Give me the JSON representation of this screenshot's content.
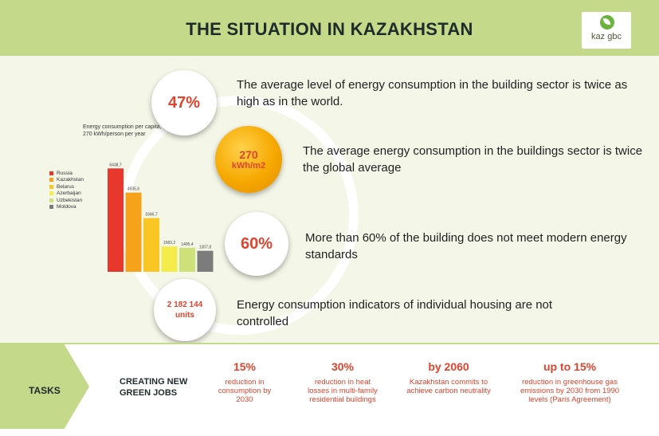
{
  "header": {
    "title": "THE SITUATION IN KAZAKHSTAN",
    "logo_text": "kaz gbc"
  },
  "stats": [
    {
      "value": "47%",
      "text": "The average level of energy consumption in the building sector is twice as high as in the world."
    },
    {
      "value": "270",
      "unit": "kWh/m2",
      "text": "The average energy consumption in the buildings sector is twice the global average"
    },
    {
      "value": "60%",
      "text": "More than 60% of the building does not meet modern energy standards"
    },
    {
      "value": "2 182 144",
      "unit": "units",
      "text": "Energy consumption indicators of individual housing are not controlled"
    }
  ],
  "chart_data": {
    "type": "bar",
    "title": "Energy consumption per capita, 270 kWh/person per year",
    "categories": [
      "Russia",
      "Kazakhstan",
      "Belarus",
      "Azerbaijan",
      "Uzbekistan",
      "Moldova"
    ],
    "values": [
      6438.7,
      4935.6,
      3346.7,
      1583.2,
      1495.4,
      1307.8
    ],
    "value_labels": [
      "6438,7",
      "4935,6",
      "3346,7",
      "1583,2",
      "1495,4",
      "1307,8"
    ],
    "colors": [
      "#e8382e",
      "#f7a21b",
      "#f9c623",
      "#f4ec4a",
      "#cde07a",
      "#7c7c7c"
    ],
    "ylim": [
      0,
      7000
    ],
    "legend": "left"
  },
  "tasks": {
    "label": "TASKS",
    "jobs_label": "CREATING NEW GREEN JOBS",
    "items": [
      {
        "head": "15%",
        "desc": "reduction in consumption by 2030"
      },
      {
        "head": "30%",
        "desc": "reduction in heat losses in multi-family residential buildings"
      },
      {
        "head": "by 2060",
        "desc": "Kazakhstan commits to achieve carbon neutrality"
      },
      {
        "head": "up to 15%",
        "desc": "reduction in greenhouse gas emissions by 2030 from 1990 levels (Paris Agreement)"
      }
    ]
  }
}
